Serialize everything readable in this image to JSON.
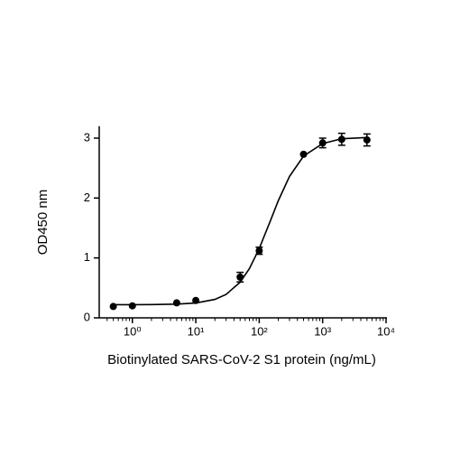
{
  "chart_data": {
    "type": "scatter",
    "x_label": "Biotinylated SARS-CoV-2 S1 protein (ng/mL)",
    "y_label": "OD450 nm",
    "xscale": "log",
    "xlim": [
      0.3,
      10000
    ],
    "ylim": [
      0,
      3.2
    ],
    "xticks": [
      {
        "value": 1,
        "label": "10⁰"
      },
      {
        "value": 10,
        "label": "10¹"
      },
      {
        "value": 100,
        "label": "10²"
      },
      {
        "value": 1000,
        "label": "10³"
      },
      {
        "value": 10000,
        "label": "10⁴"
      }
    ],
    "xminorticks": [
      0.4,
      0.5,
      0.6,
      0.7,
      0.8,
      0.9,
      2,
      3,
      4,
      5,
      6,
      7,
      8,
      9,
      20,
      30,
      40,
      50,
      60,
      70,
      80,
      90,
      200,
      300,
      400,
      500,
      600,
      700,
      800,
      900,
      2000,
      3000,
      4000,
      5000,
      6000,
      7000,
      8000,
      9000
    ],
    "yticks": [
      0,
      1,
      2,
      3
    ],
    "series": [
      {
        "type": "scatter",
        "color": "#000000",
        "x": [
          0.5,
          1,
          5,
          10,
          50,
          100,
          500,
          1000,
          2000,
          5000
        ],
        "values": [
          0.19,
          0.2,
          0.25,
          0.29,
          0.68,
          1.12,
          2.73,
          2.92,
          2.98,
          2.97
        ],
        "errors": [
          null,
          null,
          null,
          null,
          0.08,
          0.06,
          null,
          0.08,
          0.1,
          0.1
        ]
      },
      {
        "type": "line",
        "color": "#000000",
        "x": [
          0.5,
          1,
          2,
          5,
          10,
          20,
          30,
          50,
          70,
          100,
          150,
          200,
          300,
          500,
          1000,
          2000,
          5000
        ],
        "values": [
          0.22,
          0.22,
          0.222,
          0.229,
          0.248,
          0.308,
          0.391,
          0.595,
          0.822,
          1.156,
          1.62,
          1.956,
          2.36,
          2.7,
          2.91,
          2.99,
          3.01
        ]
      }
    ]
  }
}
